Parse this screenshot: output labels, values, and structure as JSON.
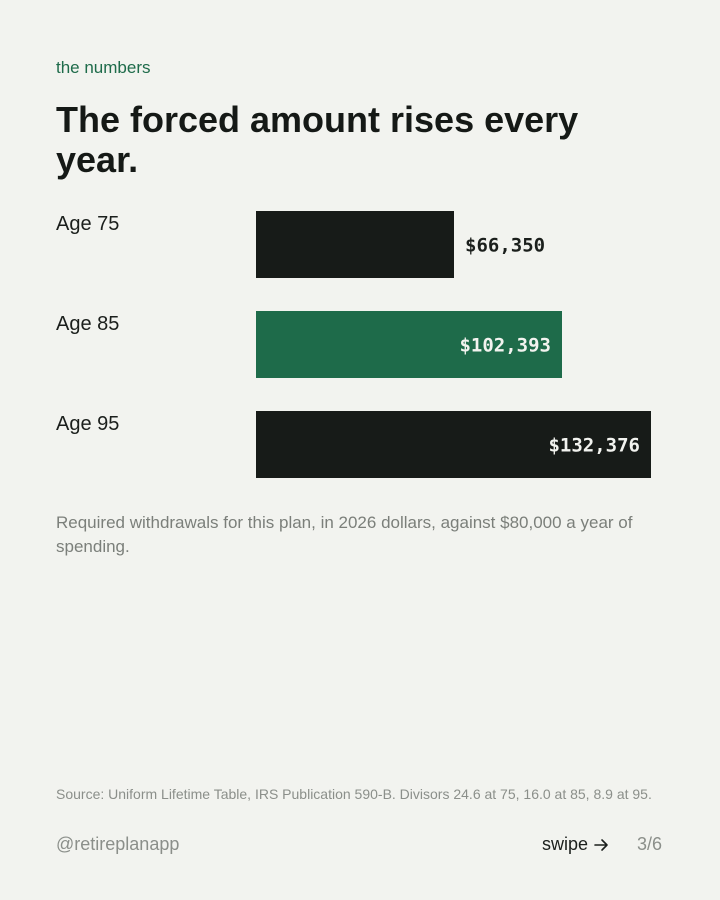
{
  "eyebrow": "the numbers",
  "title": "The forced amount rises every year.",
  "chart_data": {
    "type": "bar",
    "orientation": "horizontal",
    "categories": [
      "Age 75",
      "Age 85",
      "Age 95"
    ],
    "values": [
      66350,
      102393,
      132376
    ],
    "value_labels": [
      "$66,350",
      "$102,393",
      "$132,376"
    ],
    "highlighted_index": 1,
    "xlim": [
      0,
      132376
    ],
    "grid": false,
    "colors": {
      "default": "#171b18",
      "highlight": "#1e6b4a"
    }
  },
  "note": "Required withdrawals for this plan, in 2026 dollars, against $80,000 a year of spending.",
  "source": "Source: Uniform Lifetime Table, IRS Publication 590-B. Divisors 24.6 at 75, 16.0 at 85, 8.9 at 95.",
  "footer": {
    "handle": "@retireplanapp",
    "swipe_label": "swipe",
    "swipe_icon": "arrow-right-icon",
    "page": "3/6"
  }
}
